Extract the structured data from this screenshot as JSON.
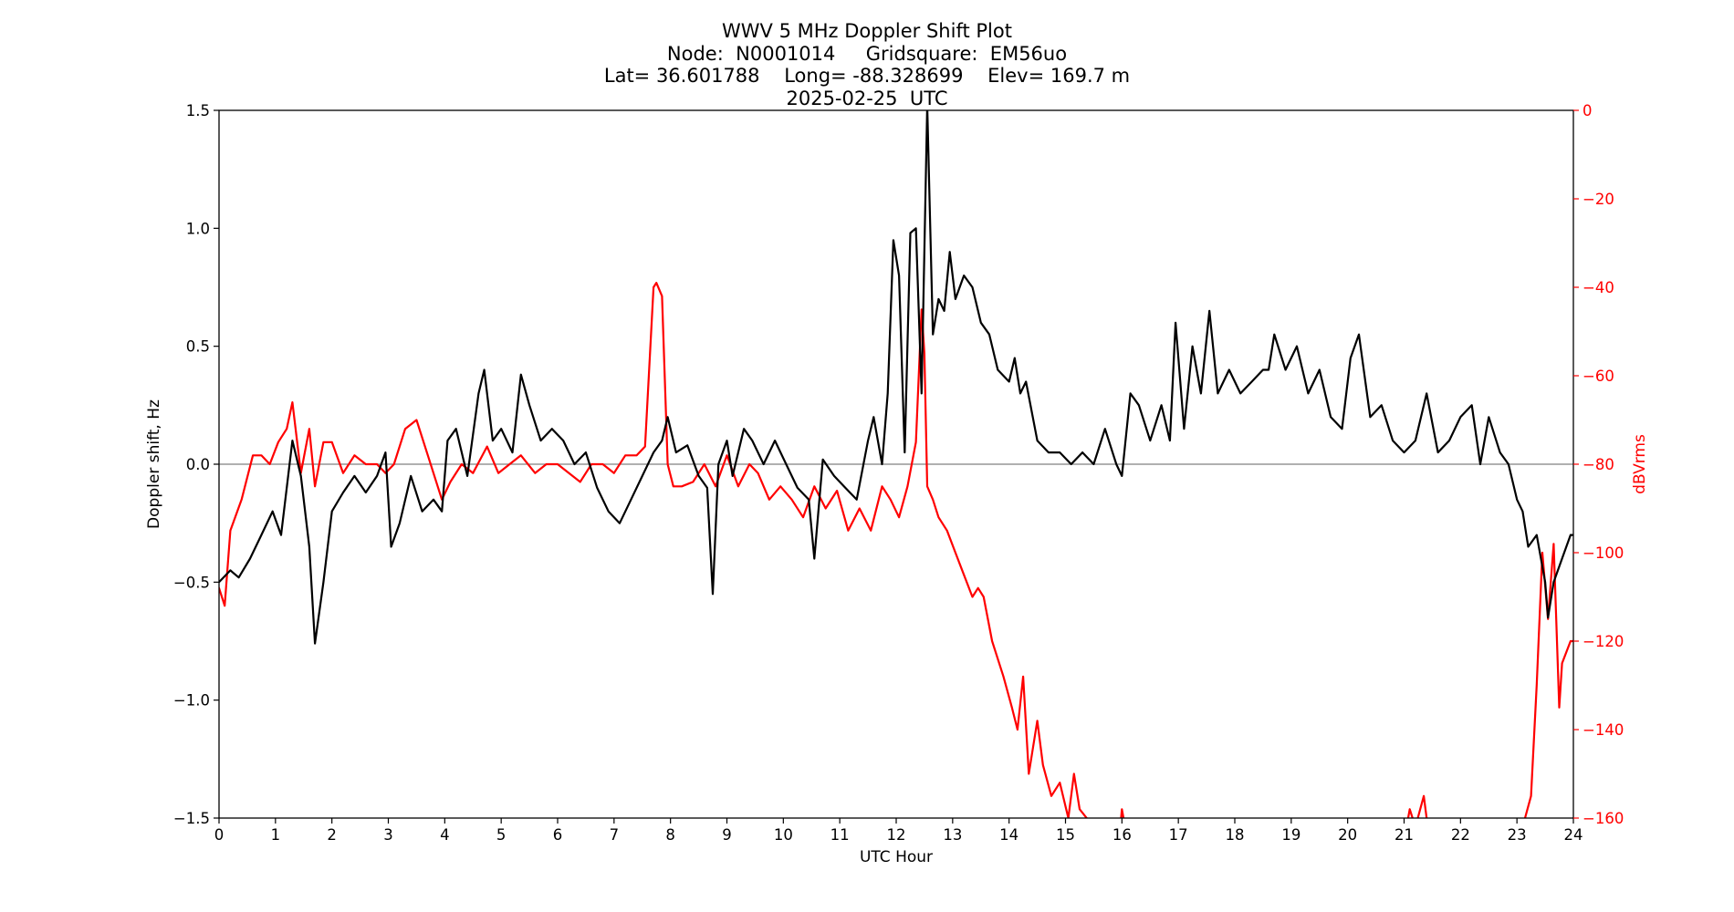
{
  "chart_data": {
    "type": "line",
    "title": "WWV 5 MHz Doppler Shift Plot",
    "subtitle_lines": [
      "Node:  N0001014     Gridsquare:  EM56uo",
      "Lat= 36.601788    Long= -88.328699    Elev= 169.7 m",
      "2025-02-25  UTC"
    ],
    "xlabel": "UTC Hour",
    "ylabel": "Doppler shift, Hz",
    "ylabel_right": "dBVrms",
    "xlim": [
      0,
      24
    ],
    "ylim": [
      -1.5,
      1.5
    ],
    "ylim_right": [
      -160,
      0
    ],
    "xticks": [
      "0",
      "1",
      "2",
      "3",
      "4",
      "5",
      "6",
      "7",
      "8",
      "9",
      "10",
      "11",
      "12",
      "13",
      "14",
      "15",
      "16",
      "17",
      "18",
      "19",
      "20",
      "21",
      "22",
      "23",
      "24"
    ],
    "yticks": [
      "1.5",
      "1.0",
      "0.5",
      "0.0",
      "−0.5",
      "−1.0",
      "−1.5"
    ],
    "yticks_right": [
      "0",
      "−20",
      "−40",
      "−60",
      "−80",
      "−100",
      "−120",
      "−140",
      "−160"
    ],
    "grid": false,
    "zero_line": true,
    "series": [
      {
        "name": "",
        "axis": "left",
        "color": "#000000",
        "x": [
          0.0,
          0.2,
          0.35,
          0.55,
          0.75,
          0.95,
          1.1,
          1.3,
          1.45,
          1.6,
          1.7,
          1.85,
          2.0,
          2.2,
          2.4,
          2.6,
          2.8,
          2.95,
          3.05,
          3.2,
          3.4,
          3.6,
          3.8,
          3.95,
          4.05,
          4.2,
          4.4,
          4.6,
          4.7,
          4.85,
          5.0,
          5.2,
          5.35,
          5.5,
          5.7,
          5.9,
          6.1,
          6.3,
          6.5,
          6.7,
          6.9,
          7.1,
          7.3,
          7.5,
          7.7,
          7.85,
          7.95,
          8.1,
          8.3,
          8.5,
          8.65,
          8.75,
          8.85,
          9.0,
          9.1,
          9.3,
          9.45,
          9.65,
          9.85,
          10.05,
          10.25,
          10.45,
          10.55,
          10.7,
          10.9,
          11.1,
          11.3,
          11.5,
          11.6,
          11.75,
          11.85,
          11.95,
          12.05,
          12.15,
          12.25,
          12.35,
          12.45,
          12.55,
          12.65,
          12.75,
          12.85,
          12.95,
          13.05,
          13.2,
          13.35,
          13.5,
          13.65,
          13.8,
          14.0,
          14.1,
          14.2,
          14.3,
          14.5,
          14.7,
          14.9,
          15.1,
          15.3,
          15.5,
          15.7,
          15.9,
          16.0,
          16.15,
          16.3,
          16.5,
          16.7,
          16.85,
          16.95,
          17.1,
          17.25,
          17.4,
          17.55,
          17.7,
          17.9,
          18.1,
          18.3,
          18.5,
          18.6,
          18.7,
          18.9,
          19.1,
          19.3,
          19.5,
          19.7,
          19.9,
          20.05,
          20.2,
          20.4,
          20.6,
          20.8,
          21.0,
          21.2,
          21.4,
          21.6,
          21.8,
          22.0,
          22.2,
          22.35,
          22.5,
          22.7,
          22.85,
          23.0,
          23.1,
          23.2,
          23.35,
          23.5,
          23.55,
          23.65,
          23.8,
          23.95,
          24.0
        ],
        "y": [
          -0.5,
          -0.45,
          -0.48,
          -0.4,
          -0.3,
          -0.2,
          -0.3,
          0.1,
          -0.05,
          -0.35,
          -0.76,
          -0.5,
          -0.2,
          -0.12,
          -0.05,
          -0.12,
          -0.05,
          0.05,
          -0.35,
          -0.25,
          -0.05,
          -0.2,
          -0.15,
          -0.2,
          0.1,
          0.15,
          -0.05,
          0.3,
          0.4,
          0.1,
          0.15,
          0.05,
          0.38,
          0.25,
          0.1,
          0.15,
          0.1,
          0.0,
          0.05,
          -0.1,
          -0.2,
          -0.25,
          -0.15,
          -0.05,
          0.05,
          0.1,
          0.2,
          0.05,
          0.08,
          -0.05,
          -0.1,
          -0.55,
          0.0,
          0.1,
          -0.05,
          0.15,
          0.1,
          0.0,
          0.1,
          0.0,
          -0.1,
          -0.15,
          -0.4,
          0.02,
          -0.05,
          -0.1,
          -0.15,
          0.1,
          0.2,
          0.0,
          0.3,
          0.95,
          0.8,
          0.05,
          0.98,
          1.0,
          0.3,
          1.52,
          0.55,
          0.7,
          0.65,
          0.9,
          0.7,
          0.8,
          0.75,
          0.6,
          0.55,
          0.4,
          0.35,
          0.45,
          0.3,
          0.35,
          0.1,
          0.05,
          0.05,
          0.0,
          0.05,
          0.0,
          0.15,
          0.0,
          -0.05,
          0.3,
          0.25,
          0.1,
          0.25,
          0.1,
          0.6,
          0.15,
          0.5,
          0.3,
          0.65,
          0.3,
          0.4,
          0.3,
          0.35,
          0.4,
          0.4,
          0.55,
          0.4,
          0.5,
          0.3,
          0.4,
          0.2,
          0.15,
          0.45,
          0.55,
          0.2,
          0.25,
          0.1,
          0.05,
          0.1,
          0.3,
          0.05,
          0.1,
          0.2,
          0.25,
          0.0,
          0.2,
          0.05,
          0.0,
          -0.15,
          -0.2,
          -0.35,
          -0.3,
          -0.5,
          -0.65,
          -0.5,
          -0.4,
          -0.3,
          -0.3
        ]
      },
      {
        "name": "",
        "axis": "right",
        "color": "#ff0000",
        "x": [
          0.0,
          0.1,
          0.2,
          0.4,
          0.6,
          0.75,
          0.9,
          1.05,
          1.2,
          1.3,
          1.45,
          1.6,
          1.7,
          1.85,
          2.0,
          2.2,
          2.4,
          2.6,
          2.8,
          2.95,
          3.1,
          3.3,
          3.5,
          3.7,
          3.95,
          4.1,
          4.3,
          4.5,
          4.75,
          4.95,
          5.15,
          5.35,
          5.6,
          5.8,
          6.0,
          6.2,
          6.4,
          6.6,
          6.8,
          7.0,
          7.2,
          7.4,
          7.55,
          7.7,
          7.75,
          7.85,
          7.95,
          8.05,
          8.2,
          8.4,
          8.6,
          8.8,
          9.0,
          9.2,
          9.4,
          9.55,
          9.75,
          9.95,
          10.15,
          10.35,
          10.55,
          10.75,
          10.95,
          11.15,
          11.35,
          11.55,
          11.75,
          11.9,
          12.05,
          12.2,
          12.35,
          12.45,
          12.5,
          12.55,
          12.65,
          12.75,
          12.9,
          13.05,
          13.2,
          13.35,
          13.45,
          13.55,
          13.7,
          13.9,
          14.05,
          14.15,
          14.25,
          14.35,
          14.5,
          14.6,
          14.75,
          14.9,
          15.05,
          15.15,
          15.25,
          15.5,
          15.8,
          15.95,
          16.0,
          16.1,
          16.4,
          16.8,
          17.2,
          17.6,
          18.0,
          18.4,
          18.8,
          19.2,
          19.6,
          20.0,
          20.4,
          20.8,
          21.0,
          21.1,
          21.2,
          21.35,
          21.4,
          21.5,
          21.7,
          22.0,
          22.4,
          22.8,
          23.1,
          23.25,
          23.35,
          23.45,
          23.55,
          23.65,
          23.75,
          23.8,
          23.95,
          24.0
        ],
        "y": [
          -108,
          -112,
          -95,
          -88,
          -78,
          -78,
          -80,
          -75,
          -72,
          -66,
          -82,
          -72,
          -85,
          -75,
          -75,
          -82,
          -78,
          -80,
          -80,
          -82,
          -80,
          -72,
          -70,
          -78,
          -88,
          -84,
          -80,
          -82,
          -76,
          -82,
          -80,
          -78,
          -82,
          -80,
          -80,
          -82,
          -84,
          -80,
          -80,
          -82,
          -78,
          -78,
          -76,
          -40,
          -39,
          -42,
          -80,
          -85,
          -85,
          -84,
          -80,
          -85,
          -78,
          -85,
          -80,
          -82,
          -88,
          -85,
          -88,
          -92,
          -85,
          -90,
          -86,
          -95,
          -90,
          -95,
          -85,
          -88,
          -92,
          -85,
          -75,
          -45,
          -55,
          -85,
          -88,
          -92,
          -95,
          -100,
          -105,
          -110,
          -108,
          -110,
          -120,
          -128,
          -135,
          -140,
          -128,
          -150,
          -138,
          -148,
          -155,
          -152,
          -160,
          -150,
          -158,
          -162,
          -165,
          -165,
          -158,
          -165,
          -165,
          -165,
          -165,
          -165,
          -165,
          -165,
          -165,
          -165,
          -165,
          -165,
          -165,
          -165,
          -165,
          -158,
          -162,
          -155,
          -160,
          -162,
          -162,
          -165,
          -165,
          -165,
          -162,
          -155,
          -130,
          -100,
          -115,
          -98,
          -135,
          -125,
          -120,
          -120
        ]
      }
    ]
  }
}
